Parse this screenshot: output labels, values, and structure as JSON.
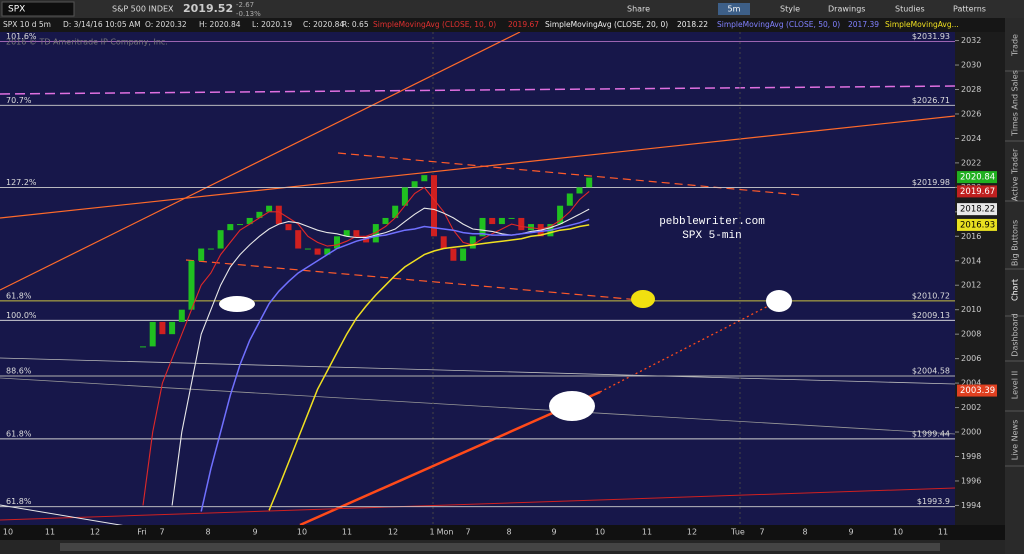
{
  "toolbar": {
    "symbol": "SPX",
    "description": "S&P 500 INDEX",
    "last": "2019.52",
    "change": "-2.67",
    "change_pct": "-0.13%",
    "share": "Share",
    "timeframe": "5m",
    "style": "Style",
    "drawings": "Drawings",
    "studies": "Studies",
    "patterns": "Patterns"
  },
  "header": {
    "items": [
      "SPX 10 d 5m",
      "D: 3/14/16 10:05 AM",
      "O: 2020.32",
      "H: 2020.84",
      "L: 2020.19",
      "C: 2020.84",
      "R: 0.65",
      "SimpleMovingAvg (CLOSE, 10, 0)",
      "2019.67",
      "SimpleMovingAvg (CLOSE, 20, 0)",
      "2018.22",
      "SimpleMovingAvg (CLOSE, 50, 0)",
      "2017.39",
      "SimpleMovingAvg..."
    ]
  },
  "copyright": "2016 © TD Ameritrade IP Company, Inc.",
  "side_tabs": [
    "Trade",
    "Times And Sales",
    "Active Trader",
    "Big Buttons",
    "Chart",
    "Dashboard",
    "Level II",
    "Live News"
  ],
  "chart": {
    "ylim": [
      1992.4,
      2032.7
    ],
    "yticks": [
      1994,
      1996,
      1998,
      2000,
      2002,
      2004,
      2006,
      2008,
      2010,
      2012,
      2014,
      2016,
      2018,
      2020,
      2022,
      2024,
      2026,
      2028,
      2030,
      2032
    ],
    "x_labels": [
      "10",
      "11",
      "12",
      "Fri",
      "7",
      "8",
      "9",
      "10",
      "11",
      "12",
      "1",
      "Mon",
      "7",
      "8",
      "9",
      "10",
      "11",
      "12",
      "Tue",
      "7",
      "8",
      "9",
      "10",
      "11"
    ],
    "closes": [
      2007,
      2009,
      2008,
      2009,
      2010,
      2014,
      2015,
      2015,
      2016.5,
      2017,
      2017,
      2017.5,
      2018,
      2018.5,
      2017,
      2016.5,
      2015,
      2015,
      2014.5,
      2015,
      2016,
      2016.5,
      2016,
      2015.5,
      2017,
      2017.5,
      2018.5,
      2020,
      2020.5,
      2021,
      2016,
      2015,
      2014,
      2015,
      2016,
      2017.5,
      2017,
      2017.5,
      2017.5,
      2016.5,
      2017,
      2016,
      2017,
      2018.5,
      2019.5,
      2020,
      2020.8
    ],
    "studies": [
      {
        "color": "#e02828",
        "values": [
          1994,
          2000,
          2004,
          2006,
          2008,
          2010,
          2012,
          2013,
          2014.5,
          2015.5,
          2016.5,
          2017,
          2017.5,
          2018,
          2018,
          2017.5,
          2017,
          2016,
          2015.5,
          2015.2,
          2015.3,
          2015.6,
          2016,
          2016,
          2016.3,
          2016.8,
          2017.5,
          2018.5,
          2019.5,
          2020,
          2019,
          2018,
          2016.5,
          2015.5,
          2015.3,
          2015.8,
          2016.2,
          2016.6,
          2017,
          2016.8,
          2016.7,
          2016.6,
          2016.8,
          2017.3,
          2018,
          2019,
          2019.67
        ]
      },
      {
        "color": "#e8e8e8",
        "values": [
          null,
          null,
          null,
          1994,
          2000,
          2004,
          2008,
          2010,
          2012,
          2013.5,
          2014.5,
          2015.3,
          2016,
          2016.6,
          2017,
          2017.2,
          2017.1,
          2016.8,
          2016.5,
          2016.3,
          2016.2,
          2016,
          2015.9,
          2015.9,
          2016.1,
          2016.3,
          2016.6,
          2017.2,
          2017.8,
          2018.3,
          2018.2,
          2017.9,
          2017.5,
          2017,
          2016.6,
          2016.5,
          2016.4,
          2016.2,
          2016.1,
          2016.2,
          2016.4,
          2016.5,
          2016.7,
          2017,
          2017.4,
          2017.8,
          2018.22
        ]
      },
      {
        "color": "#7070ff",
        "values": [
          null,
          null,
          null,
          null,
          null,
          null,
          1993.5,
          1997,
          2000,
          2003,
          2005.5,
          2007.5,
          2009,
          2010.5,
          2011.5,
          2012.3,
          2013,
          2013.5,
          2014,
          2014.5,
          2015,
          2015.3,
          2015.6,
          2015.8,
          2016,
          2016.1,
          2016.3,
          2016.5,
          2016.6,
          2016.8,
          2016.7,
          2016.6,
          2016.5,
          2016.3,
          2016.2,
          2016.2,
          2016.1,
          2016.1,
          2016.1,
          2016.2,
          2016.3,
          2016.4,
          2016.5,
          2016.7,
          2016.9,
          2017.1,
          2017.39
        ]
      },
      {
        "color": "#f0e020",
        "values": [
          null,
          null,
          null,
          null,
          null,
          null,
          null,
          null,
          null,
          null,
          null,
          null,
          null,
          1993.6,
          1995.5,
          1997.5,
          1999.5,
          2001.5,
          2003.5,
          2005,
          2006.5,
          2008,
          2009.3,
          2010.3,
          2011.2,
          2012,
          2012.8,
          2013.5,
          2014,
          2014.5,
          2014.8,
          2015,
          2015.1,
          2015.2,
          2015.3,
          2015.4,
          2015.5,
          2015.6,
          2015.7,
          2015.8,
          2016,
          2016.1,
          2016.3,
          2016.5,
          2016.6,
          2016.8,
          2016.93
        ]
      }
    ],
    "price_tags": [
      {
        "value": 2020.84,
        "color": "#20b020"
      },
      {
        "value": 2019.67,
        "color": "#c02020"
      },
      {
        "value": 2018.22,
        "color": "#e8e8e8"
      },
      {
        "value": 2016.93,
        "color": "#e8e020"
      },
      {
        "value": 2003.39,
        "color": "#e04020"
      }
    ],
    "levels": [
      {
        "pct": "101.6%",
        "price": {
          "value": 2031.93,
          "label": "$2031.93"
        },
        "color": "#b070c0"
      },
      {
        "pct": "70.7%",
        "price": {
          "value": 2026.71,
          "label": "$2026.71"
        },
        "color": "#d0d0d0"
      },
      {
        "pct": "127.2%",
        "price": {
          "value": 2019.98,
          "label": "$2019.98"
        },
        "color": "#d0d0d0"
      },
      {
        "pct": "61.8%",
        "price": {
          "value": 2010.72,
          "label": "$2010.72"
        },
        "color": "#c8c040"
      },
      {
        "pct": "100.0%",
        "price": {
          "value": 2009.13,
          "label": "$2009.13"
        },
        "color": "#e8e8e8"
      },
      {
        "pct": "88.6%",
        "price": {
          "value": 2004.58,
          "label": "$2004.58"
        },
        "color": "#b0b0b0"
      },
      {
        "pct": "61.8%",
        "price": {
          "value": 1999.44,
          "label": "$1999.44"
        },
        "color": "#d0d0d0"
      },
      {
        "pct": "61.8%",
        "price": {
          "value": 1993.9,
          "label": "$1993.9"
        },
        "color": "#d0d0d0"
      }
    ],
    "annotation": [
      "pebblewriter.com",
      "SPX 5-min"
    ]
  }
}
